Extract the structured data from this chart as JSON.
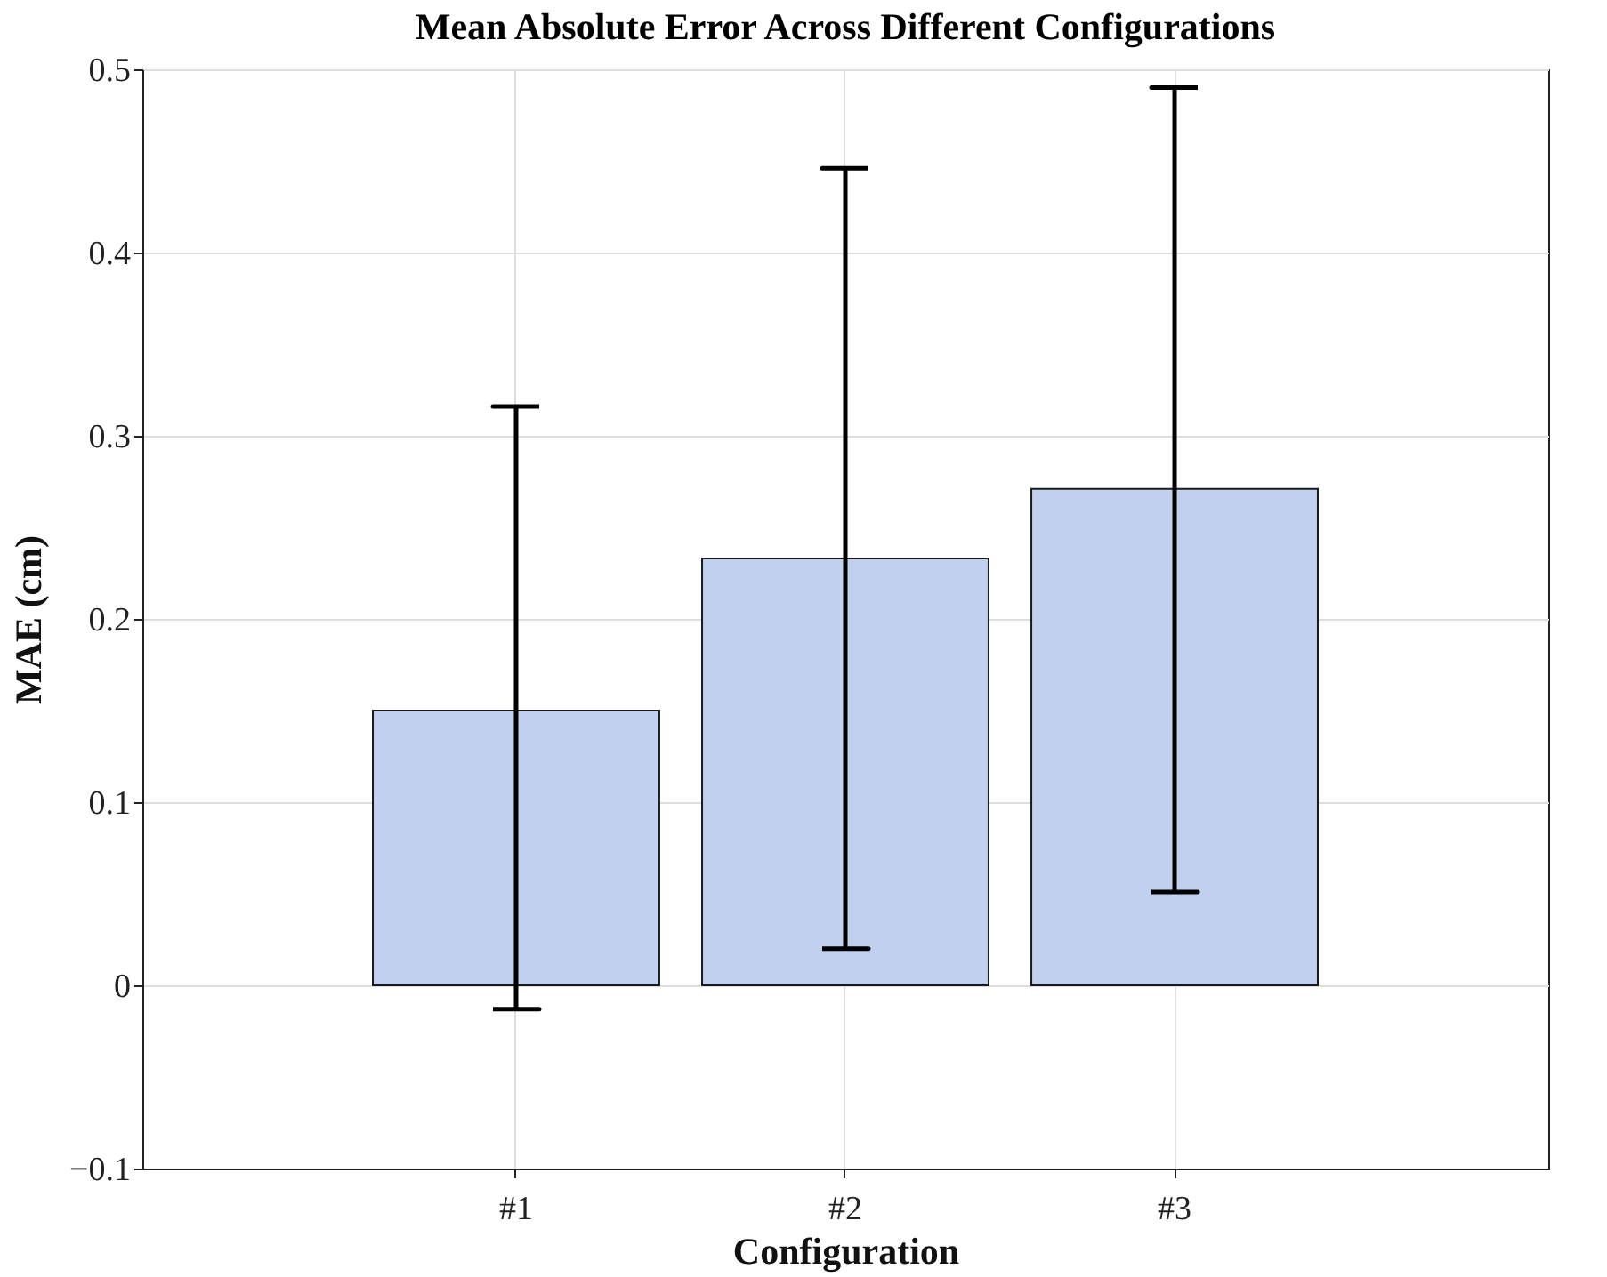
{
  "chart_data": {
    "type": "bar",
    "title": "Mean Absolute Error Across Different Configurations",
    "xlabel": "Configuration",
    "ylabel": "MAE (cm)",
    "categories": [
      "#1",
      "#2",
      "#3"
    ],
    "values": [
      0.15,
      0.233,
      0.271
    ],
    "errors": [
      [
        -0.013,
        0.316
      ],
      [
        0.02,
        0.446
      ],
      [
        0.051,
        0.49
      ]
    ],
    "color": "#c0d0ee",
    "ylim": [
      -0.1,
      0.5
    ],
    "yticks": [
      -0.1,
      0,
      0.1,
      0.2,
      0.3,
      0.4,
      0.5
    ],
    "grid": true
  }
}
